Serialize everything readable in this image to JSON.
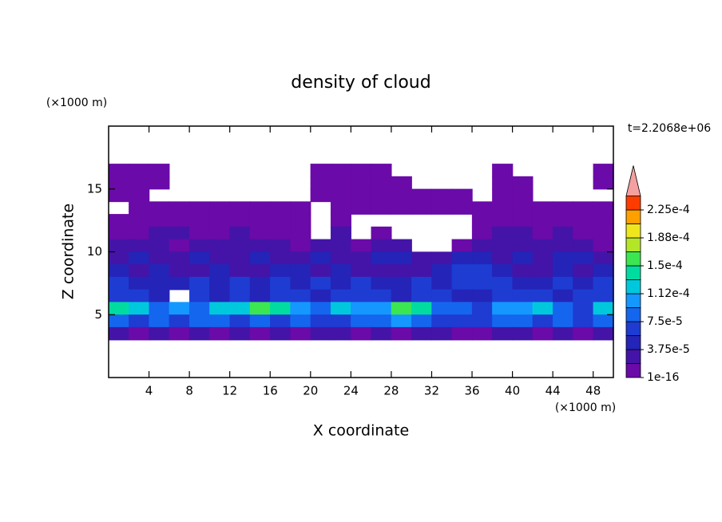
{
  "chart_data": {
    "type": "contour",
    "title": "density of cloud",
    "xlabel": "X coordinate",
    "ylabel": "Z coordinate",
    "x_unit": "(×1000 m)",
    "y_unit": "(×1000 m)",
    "time_label": "t=2.2068e+06",
    "xlim": [
      0,
      50
    ],
    "ylim": [
      0,
      20
    ],
    "xticks": [
      4,
      8,
      12,
      16,
      20,
      24,
      28,
      32,
      36,
      40,
      44,
      48
    ],
    "yticks": [
      5,
      10,
      15
    ],
    "x": [
      1,
      3,
      5,
      7,
      9,
      11,
      13,
      15,
      17,
      19,
      21,
      23,
      25,
      27,
      29,
      31,
      33,
      35,
      37,
      39,
      41,
      43,
      45,
      47,
      49
    ],
    "y": [
      16.5,
      15.5,
      14.5,
      13.5,
      12.5,
      11.5,
      10.5,
      9.5,
      8.5,
      7.5,
      6.5,
      5.5,
      4.5,
      3.5
    ],
    "z": [
      [
        5e-06,
        5e-06,
        5e-06,
        null,
        null,
        null,
        null,
        null,
        null,
        null,
        5e-06,
        5e-06,
        5e-06,
        5e-06,
        null,
        null,
        null,
        null,
        null,
        5e-06,
        null,
        null,
        null,
        null,
        5e-06
      ],
      [
        5e-06,
        5e-06,
        5e-06,
        null,
        null,
        null,
        null,
        null,
        null,
        null,
        5e-06,
        5e-06,
        5e-06,
        5e-06,
        5e-06,
        null,
        null,
        null,
        null,
        5e-06,
        5e-06,
        null,
        null,
        null,
        5e-06
      ],
      [
        5e-06,
        5e-06,
        null,
        null,
        null,
        null,
        null,
        null,
        null,
        null,
        5e-06,
        5e-06,
        5e-06,
        5e-06,
        5e-06,
        5e-06,
        5e-06,
        5e-06,
        null,
        5e-06,
        5e-06,
        null,
        null,
        null,
        null
      ],
      [
        null,
        5e-06,
        5e-06,
        5e-06,
        5e-06,
        5e-06,
        5e-06,
        5e-06,
        5e-06,
        5e-06,
        null,
        5e-06,
        5e-06,
        5e-06,
        5e-06,
        5e-06,
        5e-06,
        5e-06,
        5e-06,
        5e-06,
        5e-06,
        5e-06,
        5e-06,
        5e-06,
        5e-06
      ],
      [
        5e-06,
        5e-06,
        5e-06,
        5e-06,
        5e-06,
        5e-06,
        5e-06,
        5e-06,
        5e-06,
        5e-06,
        null,
        5e-06,
        null,
        null,
        null,
        null,
        null,
        null,
        5e-06,
        5e-06,
        5e-06,
        5e-06,
        5e-06,
        5e-06,
        5e-06
      ],
      [
        5e-06,
        5e-06,
        2.5e-05,
        2.5e-05,
        5e-06,
        5e-06,
        2.5e-05,
        5e-06,
        5e-06,
        5e-06,
        null,
        2.5e-05,
        null,
        5e-06,
        null,
        null,
        null,
        null,
        5e-06,
        2.5e-05,
        2.5e-05,
        5e-06,
        2.5e-05,
        5e-06,
        5e-06
      ],
      [
        2.5e-05,
        2.5e-05,
        2.5e-05,
        5e-06,
        2.5e-05,
        2.5e-05,
        2.5e-05,
        2.5e-05,
        2.5e-05,
        5e-06,
        2.5e-05,
        2.5e-05,
        5e-06,
        2.5e-05,
        2.5e-05,
        null,
        null,
        5e-06,
        2.5e-05,
        2.5e-05,
        2.5e-05,
        2.5e-05,
        2.5e-05,
        2.5e-05,
        5e-06
      ],
      [
        2.5e-05,
        4.5e-05,
        2.5e-05,
        2.5e-05,
        4.5e-05,
        2.5e-05,
        2.5e-05,
        4.5e-05,
        2.5e-05,
        2.5e-05,
        4.5e-05,
        2.5e-05,
        2.5e-05,
        4.5e-05,
        4.5e-05,
        2.5e-05,
        2.5e-05,
        4.5e-05,
        4.5e-05,
        2.5e-05,
        4.5e-05,
        2.5e-05,
        4.5e-05,
        4.5e-05,
        2.5e-05
      ],
      [
        4.5e-05,
        2.5e-05,
        4.5e-05,
        2.5e-05,
        2.5e-05,
        4.5e-05,
        2.5e-05,
        2.5e-05,
        4.5e-05,
        4.5e-05,
        2.5e-05,
        4.5e-05,
        2.5e-05,
        2.5e-05,
        2.5e-05,
        2.5e-05,
        4.5e-05,
        6.5e-05,
        6.5e-05,
        4.5e-05,
        2.5e-05,
        2.5e-05,
        4.5e-05,
        2.5e-05,
        4.5e-05
      ],
      [
        6.5e-05,
        4.5e-05,
        4.5e-05,
        4.5e-05,
        6.5e-05,
        4.5e-05,
        6.5e-05,
        4.5e-05,
        6.5e-05,
        4.5e-05,
        6.5e-05,
        4.5e-05,
        6.5e-05,
        4.5e-05,
        4.5e-05,
        6.5e-05,
        4.5e-05,
        6.5e-05,
        6.5e-05,
        6.5e-05,
        4.5e-05,
        4.5e-05,
        6.5e-05,
        4.5e-05,
        6.5e-05
      ],
      [
        6.5e-05,
        6.5e-05,
        4.5e-05,
        null,
        6.5e-05,
        4.5e-05,
        6.5e-05,
        4.5e-05,
        6.5e-05,
        6.5e-05,
        4.5e-05,
        6.5e-05,
        6.5e-05,
        6.5e-05,
        4.5e-05,
        6.5e-05,
        6.5e-05,
        4.5e-05,
        4.5e-05,
        6.5e-05,
        6.5e-05,
        6.5e-05,
        4.5e-05,
        6.5e-05,
        6.5e-05
      ],
      [
        0.00014,
        0.00012,
        8.5e-05,
        0.000105,
        8.5e-05,
        0.00012,
        0.00012,
        0.00016,
        0.00014,
        0.000105,
        8.5e-05,
        0.00012,
        0.000105,
        0.000105,
        0.00016,
        0.00014,
        8.5e-05,
        8.5e-05,
        6.5e-05,
        0.000105,
        0.000105,
        0.00012,
        8.5e-05,
        6.5e-05,
        0.00012
      ],
      [
        8.5e-05,
        6.5e-05,
        8.5e-05,
        6.5e-05,
        8.5e-05,
        8.5e-05,
        6.5e-05,
        8.5e-05,
        6.5e-05,
        8.5e-05,
        6.5e-05,
        6.5e-05,
        8.5e-05,
        8.5e-05,
        0.000105,
        8.5e-05,
        6.5e-05,
        6.5e-05,
        6.5e-05,
        8.5e-05,
        8.5e-05,
        6.5e-05,
        8.5e-05,
        6.5e-05,
        8.5e-05
      ],
      [
        2.5e-05,
        5e-06,
        2.5e-05,
        5e-06,
        2.5e-05,
        5e-06,
        2.5e-05,
        5e-06,
        2.5e-05,
        5e-06,
        2.5e-05,
        2.5e-05,
        5e-06,
        2.5e-05,
        5e-06,
        2.5e-05,
        2.5e-05,
        5e-06,
        5e-06,
        2.5e-05,
        2.5e-05,
        5e-06,
        2.5e-05,
        5e-06,
        2.5e-05
      ]
    ],
    "levels": [
      1e-16,
      1.875e-05,
      3.75e-05,
      5.625e-05,
      7.5e-05,
      9.375e-05,
      0.0001125,
      0.00013125,
      0.00015,
      0.00016875,
      0.0001875,
      0.00020625,
      0.000225,
      0.00024375
    ],
    "colors": [
      "#6a0aa8",
      "#4414a8",
      "#2424b8",
      "#1e3cd2",
      "#1466ee",
      "#1498ff",
      "#00c8dc",
      "#00dca0",
      "#3ce650",
      "#b4e628",
      "#f0e61e",
      "#ffa000",
      "#ff3c00"
    ],
    "extend_color": "#f4a0a0",
    "colorbar_ticks": [
      1e-16,
      {
        "value": 3.75e-05,
        "label": "3.75e-5"
      },
      {
        "value": 7.5e-05,
        "label": "7.5e-5"
      },
      {
        "value": 0.0001125,
        "label": "1.12e-4"
      },
      {
        "value": 0.00015,
        "label": "1.5e-4"
      },
      {
        "value": 0.0001875,
        "label": "1.88e-4"
      },
      {
        "value": 0.000225,
        "label": "2.25e-4"
      }
    ]
  }
}
